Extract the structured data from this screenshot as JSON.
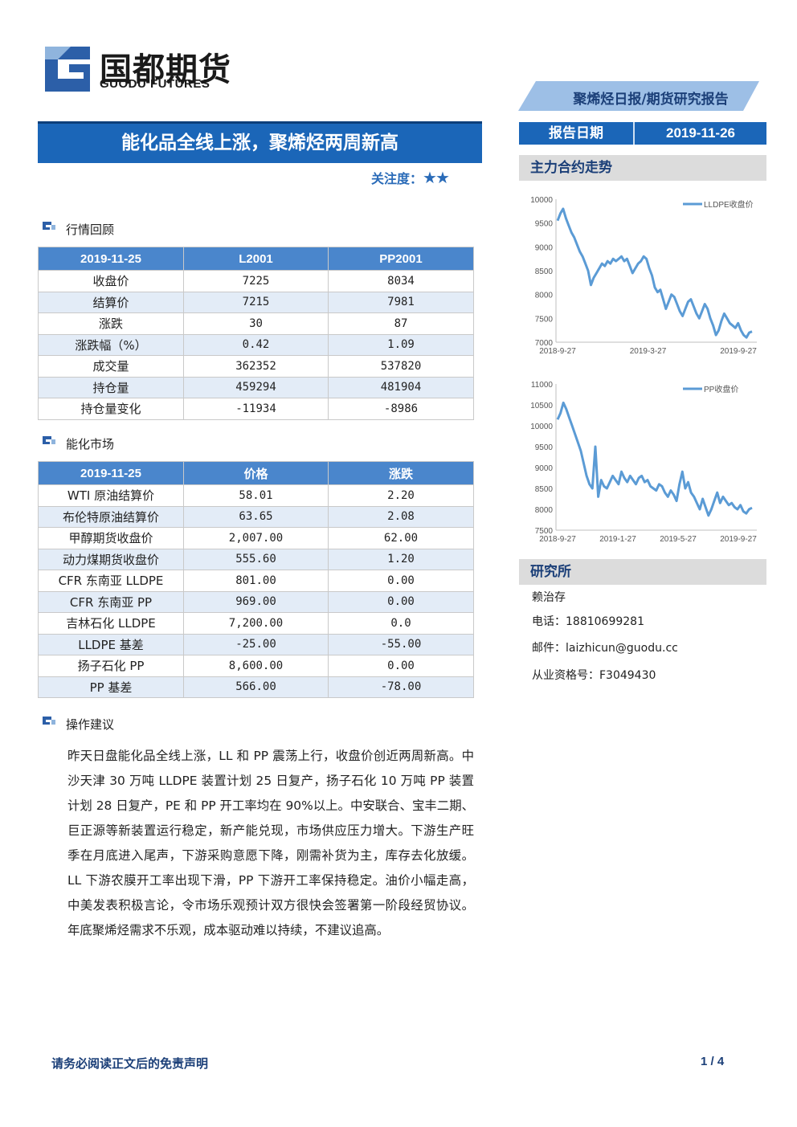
{
  "header": {
    "logo_cn": "国都期货",
    "logo_en": "GUODU FUTURES",
    "report_type": "聚烯烃日报/期货研究报告",
    "report_date_label": "报告日期",
    "report_date": "2019-11-26"
  },
  "title": "能化品全线上涨，聚烯烃两周新高",
  "focus": {
    "label": "关注度：",
    "stars": "★★"
  },
  "sections": {
    "market_review": "行情回顾",
    "energy_market": "能化市场",
    "advice": "操作建议"
  },
  "table1": {
    "headers": [
      "2019-11-25",
      "L2001",
      "PP2001"
    ],
    "rows": [
      [
        "收盘价",
        "7225",
        "8034"
      ],
      [
        "结算价",
        "7215",
        "7981"
      ],
      [
        "涨跌",
        "30",
        "87"
      ],
      [
        "涨跌幅（%）",
        "0.42",
        "1.09"
      ],
      [
        "成交量",
        "362352",
        "537820"
      ],
      [
        "持仓量",
        "459294",
        "481904"
      ],
      [
        "持仓量变化",
        "-11934",
        "-8986"
      ]
    ]
  },
  "table2": {
    "headers": [
      "2019-11-25",
      "价格",
      "涨跌"
    ],
    "rows": [
      [
        "WTI 原油结算价",
        "58.01",
        "2.20"
      ],
      [
        "布伦特原油结算价",
        "63.65",
        "2.08"
      ],
      [
        "甲醇期货收盘价",
        "2,007.00",
        "62.00"
      ],
      [
        "动力煤期货收盘价",
        "555.60",
        "1.20"
      ],
      [
        "CFR 东南亚 LLDPE",
        "801.00",
        "0.00"
      ],
      [
        "CFR 东南亚 PP",
        "969.00",
        "0.00"
      ],
      [
        "吉林石化 LLDPE",
        "7,200.00",
        "0.0"
      ],
      [
        "LLDPE 基差",
        "-25.00",
        "-55.00"
      ],
      [
        "扬子石化 PP",
        "8,600.00",
        "0.00"
      ],
      [
        "PP 基差",
        "566.00",
        "-78.00"
      ]
    ]
  },
  "advice_text": "昨天日盘能化品全线上涨，LL 和 PP 震荡上行，收盘价创近两周新高。中沙天津 30 万吨 LLDPE 装置计划 25 日复产，扬子石化 10 万吨 PP 装置计划 28 日复产，PE 和 PP 开工率均在 90%以上。中安联合、宝丰二期、巨正源等新装置运行稳定，新产能兑现，市场供应压力增大。下游生产旺季在月底进入尾声，下游采购意愿下降，刚需补货为主，库存去化放缓。LL 下游农膜开工率出现下滑，PP 下游开工率保持稳定。油价小幅走高，中美发表积极言论，令市场乐观预计双方很快会签署第一阶段经贸协议。年底聚烯烃需求不乐观，成本驱动难以持续，不建议追高。",
  "right": {
    "trend_heading": "主力合约走势",
    "research_heading": "研究所",
    "analyst": "赖治存",
    "phone_label": "电话：",
    "phone": "18810699281",
    "email_label": "邮件：",
    "email": "laizhicun@guodu.cc",
    "license_label": "从业资格号：",
    "license": "F3049430"
  },
  "chart_data": [
    {
      "type": "line",
      "title": "",
      "legend": "LLDPE收盘价",
      "legend_position": "top-right",
      "ylim": [
        7000,
        10000
      ],
      "yticks": [
        "7000",
        "7500",
        "8000",
        "8500",
        "9000",
        "9500",
        "10000"
      ],
      "xticks": [
        "2018-9-27",
        "2019-3-27",
        "2019-9-27"
      ],
      "grid": false,
      "color": "#5b9bd5",
      "series": [
        {
          "values": [
            9550,
            9700,
            9800,
            9600,
            9450,
            9300,
            9200,
            9050,
            8900,
            8800,
            8650,
            8500,
            8200,
            8350,
            8450,
            8550,
            8650,
            8600,
            8700,
            8650,
            8750,
            8700,
            8750,
            8800,
            8700,
            8750,
            8600,
            8450,
            8550,
            8650,
            8700,
            8800,
            8750,
            8550,
            8400,
            8150,
            8050,
            8100,
            7900,
            7700,
            7850,
            8000,
            7950,
            7800,
            7650,
            7550,
            7700,
            7850,
            7900,
            7750,
            7600,
            7500,
            7650,
            7800,
            7700,
            7500,
            7350,
            7150,
            7250,
            7450,
            7600,
            7500,
            7400,
            7350,
            7300,
            7400,
            7250,
            7150,
            7100,
            7200,
            7225
          ]
        }
      ]
    },
    {
      "type": "line",
      "title": "",
      "legend": "PP收盘价",
      "legend_position": "top-right",
      "ylim": [
        7500,
        11000
      ],
      "yticks": [
        "7500",
        "8000",
        "8500",
        "9000",
        "9500",
        "10000",
        "10500",
        "11000"
      ],
      "xticks": [
        "2018-9-27",
        "2019-1-27",
        "2019-5-27",
        "2019-9-27"
      ],
      "grid": false,
      "color": "#5b9bd5",
      "series": [
        {
          "values": [
            10150,
            10300,
            10550,
            10400,
            10200,
            10000,
            9800,
            9600,
            9400,
            9100,
            8800,
            8600,
            8500,
            9500,
            8300,
            8700,
            8550,
            8500,
            8650,
            8800,
            8700,
            8600,
            8900,
            8750,
            8650,
            8800,
            8700,
            8600,
            8750,
            8800,
            8650,
            8700,
            8550,
            8500,
            8450,
            8600,
            8550,
            8400,
            8300,
            8450,
            8350,
            8200,
            8600,
            8900,
            8500,
            8650,
            8400,
            8300,
            8150,
            8000,
            8250,
            8050,
            7850,
            8000,
            8200,
            8400,
            8150,
            8300,
            8200,
            8100,
            8150,
            8050,
            8000,
            8100,
            7950,
            7900,
            8000,
            8034
          ]
        }
      ]
    }
  ],
  "footer": {
    "disclaimer": "请务必阅读正文后的免责声明",
    "page": "1 / 4"
  }
}
